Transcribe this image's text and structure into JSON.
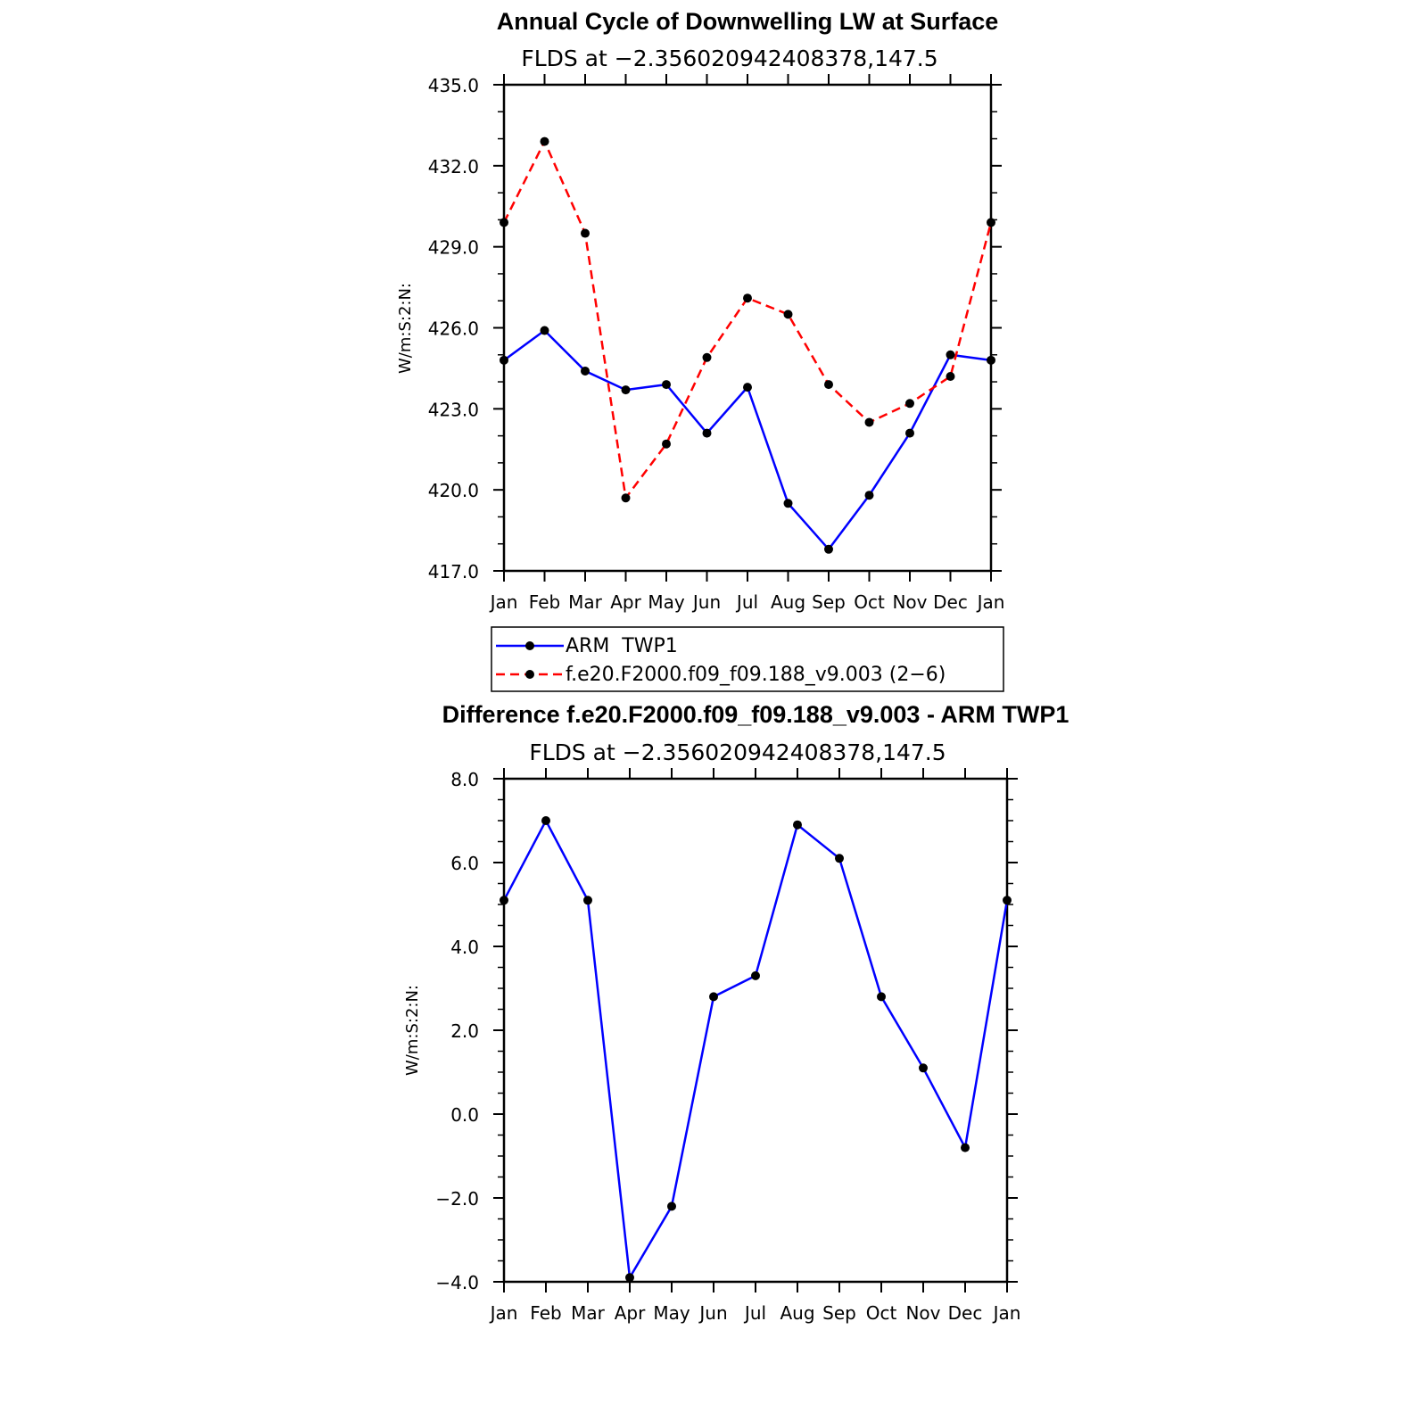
{
  "chart_data": [
    {
      "type": "line",
      "title": "Annual Cycle of Downwelling LW at Surface",
      "subtitle": "FLDS at −2.356020942408378,147.5",
      "ylabel": "W/m:S:2:N:",
      "categories": [
        "Jan",
        "Feb",
        "Mar",
        "Apr",
        "May",
        "Jun",
        "Jul",
        "Aug",
        "Sep",
        "Oct",
        "Nov",
        "Dec",
        "Jan"
      ],
      "ylim": [
        417.0,
        435.0
      ],
      "yticks": [
        435.0,
        432.0,
        429.0,
        426.0,
        423.0,
        420.0,
        417.0
      ],
      "ytick_labels": [
        "435.0",
        "432.0",
        "429.0",
        "426.0",
        "423.0",
        "420.0",
        "417.0"
      ],
      "series": [
        {
          "name": "ARM  TWP1",
          "color": "#0000ff",
          "dash": "solid",
          "values": [
            424.8,
            425.9,
            424.4,
            423.7,
            423.9,
            422.1,
            423.8,
            419.5,
            417.8,
            419.8,
            422.1,
            425.0,
            424.8
          ]
        },
        {
          "name": "f.e20.F2000.f09_f09.188_v9.003 (2−6)",
          "color": "#ff0000",
          "dash": "dashed",
          "values": [
            429.9,
            432.9,
            429.5,
            419.7,
            421.7,
            424.9,
            427.1,
            426.5,
            423.9,
            422.5,
            423.2,
            424.2,
            429.9
          ]
        }
      ],
      "legend": "below"
    },
    {
      "type": "line",
      "title": "Difference f.e20.F2000.f09_f09.188_v9.003 - ARM TWP1",
      "subtitle": "FLDS at −2.356020942408378,147.5",
      "ylabel": "W/m:S:2:N:",
      "categories": [
        "Jan",
        "Feb",
        "Mar",
        "Apr",
        "May",
        "Jun",
        "Jul",
        "Aug",
        "Sep",
        "Oct",
        "Nov",
        "Dec",
        "Jan"
      ],
      "ylim": [
        -4.0,
        8.0
      ],
      "yticks": [
        8.0,
        6.0,
        4.0,
        2.0,
        0.0,
        -2.0,
        -4.0
      ],
      "ytick_labels": [
        "8.0",
        "6.0",
        "4.0",
        "2.0",
        "0.0",
        "−2.0",
        "−4.0"
      ],
      "series": [
        {
          "color": "#0000ff",
          "dash": "solid",
          "values": [
            5.1,
            7.0,
            5.1,
            -3.9,
            -2.2,
            2.8,
            3.3,
            6.9,
            6.1,
            2.8,
            1.1,
            -0.8,
            5.1
          ]
        }
      ]
    }
  ]
}
